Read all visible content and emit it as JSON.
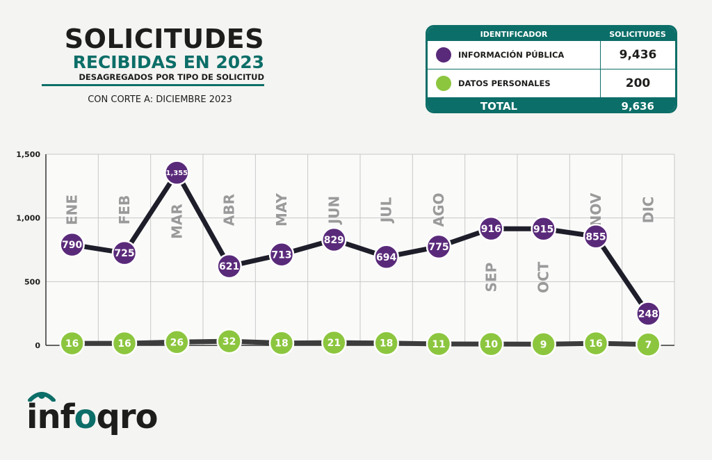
{
  "header": {
    "title_line1": "SOLICITUDES",
    "title_line2": "RECIBIDAS EN 2023",
    "title_line3": "DESAGREGADOS POR TIPO DE SOLICITUD",
    "cutoff": "CON CORTE A: DICIEMBRE 2023"
  },
  "legend": {
    "col_identifier": "IDENTIFICADOR",
    "col_requests": "SOLICITUDES",
    "rows": [
      {
        "label": "INFORMACIÓN PÚBLICA",
        "value": "9,436",
        "color": "#5a2a7a"
      },
      {
        "label": "DATOS PERSONALES",
        "value": "200",
        "color": "#8cc63f"
      }
    ],
    "total_label": "TOTAL",
    "total_value": "9,636"
  },
  "logo": {
    "text_a": "inf",
    "text_b": "o",
    "text_c": "qro"
  },
  "chart_data": {
    "type": "line",
    "categories": [
      "ENE",
      "FEB",
      "MAR",
      "ABR",
      "MAY",
      "JUN",
      "JUL",
      "AGO",
      "SEP",
      "OCT",
      "NOV",
      "DIC"
    ],
    "series": [
      {
        "name": "INFORMACIÓN PÚBLICA",
        "values": [
          790,
          725,
          1355,
          621,
          713,
          829,
          694,
          775,
          916,
          915,
          855,
          248
        ],
        "color": "#5a2a7a",
        "line_color": "#1e1e2a"
      },
      {
        "name": "DATOS PERSONALES",
        "values": [
          16,
          16,
          26,
          32,
          18,
          21,
          18,
          11,
          10,
          9,
          16,
          7
        ],
        "color": "#8cc63f",
        "line_color": "#3c3c3c"
      }
    ],
    "y_ticks": [
      "0",
      "500",
      "1,000",
      "1,500"
    ],
    "ylim": [
      0,
      1500
    ],
    "grid": true,
    "accent": "#0c6e68"
  }
}
